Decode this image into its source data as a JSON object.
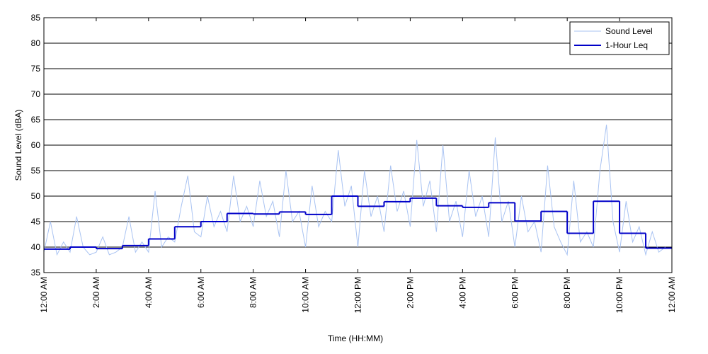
{
  "chart_data": {
    "type": "line",
    "xlabel": "Time (HH:MM)",
    "ylabel": "Sound Level (dBA)",
    "xlim": [
      0,
      24
    ],
    "ylim": [
      35,
      85
    ],
    "yticks": [
      35,
      40,
      45,
      50,
      55,
      60,
      65,
      70,
      75,
      80,
      85
    ],
    "xticks": [
      {
        "value": 0,
        "label": "12:00 AM"
      },
      {
        "value": 2,
        "label": "2:00 AM"
      },
      {
        "value": 4,
        "label": "4:00 AM"
      },
      {
        "value": 6,
        "label": "6:00 AM"
      },
      {
        "value": 8,
        "label": "8:00 AM"
      },
      {
        "value": 10,
        "label": "10:00 AM"
      },
      {
        "value": 12,
        "label": "12:00 PM"
      },
      {
        "value": 14,
        "label": "2:00 PM"
      },
      {
        "value": 16,
        "label": "4:00 PM"
      },
      {
        "value": 18,
        "label": "6:00 PM"
      },
      {
        "value": 20,
        "label": "8:00 PM"
      },
      {
        "value": 22,
        "label": "10:00 PM"
      },
      {
        "value": 24,
        "label": "12:00 AM"
      }
    ],
    "grid": true,
    "legend": "upper right",
    "series": [
      {
        "name": "Sound Level",
        "color": "#a9c3f2",
        "step": false,
        "x": [
          0,
          0.25,
          0.5,
          0.75,
          1,
          1.25,
          1.5,
          1.75,
          2,
          2.25,
          2.5,
          2.75,
          3,
          3.25,
          3.5,
          3.75,
          4,
          4.25,
          4.5,
          4.75,
          5,
          5.25,
          5.5,
          5.75,
          6,
          6.25,
          6.5,
          6.75,
          7,
          7.25,
          7.5,
          7.75,
          8,
          8.25,
          8.5,
          8.75,
          9,
          9.25,
          9.5,
          9.75,
          10,
          10.25,
          10.5,
          10.75,
          11,
          11.25,
          11.5,
          11.75,
          12,
          12.25,
          12.5,
          12.75,
          13,
          13.25,
          13.5,
          13.75,
          14,
          14.25,
          14.5,
          14.75,
          15,
          15.25,
          15.5,
          15.75,
          16,
          16.25,
          16.5,
          16.75,
          17,
          17.25,
          17.5,
          17.75,
          18,
          18.25,
          18.5,
          18.75,
          19,
          19.25,
          19.5,
          19.75,
          20,
          20.25,
          20.5,
          20.75,
          21,
          21.25,
          21.5,
          21.75,
          22,
          22.25,
          22.5,
          22.75,
          23,
          23.25,
          23.5,
          23.75
        ],
        "values": [
          39,
          45,
          38.5,
          41,
          39,
          46,
          40,
          38.5,
          39,
          42,
          38.5,
          39,
          40,
          46,
          39,
          41,
          39,
          51,
          40,
          42,
          41,
          48,
          54,
          43,
          42,
          50,
          44,
          47,
          43,
          54,
          45,
          48,
          44,
          53,
          46,
          49,
          42,
          55,
          45,
          47,
          40,
          52,
          44,
          47,
          45,
          59,
          48,
          52,
          40,
          55,
          46,
          50,
          43,
          56,
          47,
          51,
          44,
          61,
          48,
          53,
          43,
          60,
          45,
          49,
          42,
          55,
          46,
          50,
          42,
          61.5,
          45,
          49,
          40,
          50,
          43,
          45,
          39,
          56,
          44,
          41,
          38.5,
          53,
          41,
          43,
          40,
          55,
          64,
          45,
          39,
          49,
          41,
          44,
          38.5,
          43,
          39,
          40
        ]
      },
      {
        "name": "1-Hour Leq",
        "color": "#0000c8",
        "step": true,
        "x": [
          0,
          1,
          2,
          3,
          4,
          5,
          6,
          7,
          8,
          9,
          10,
          11,
          12,
          13,
          14,
          15,
          16,
          17,
          18,
          19,
          20,
          21,
          22,
          23
        ],
        "values": [
          39.6,
          40.0,
          39.7,
          40.3,
          41.6,
          44.0,
          45.0,
          46.6,
          46.5,
          46.9,
          46.4,
          50.0,
          48.0,
          48.9,
          49.6,
          48.1,
          47.8,
          48.7,
          45.1,
          47.0,
          42.7,
          49.0,
          42.7,
          39.8
        ]
      }
    ]
  }
}
